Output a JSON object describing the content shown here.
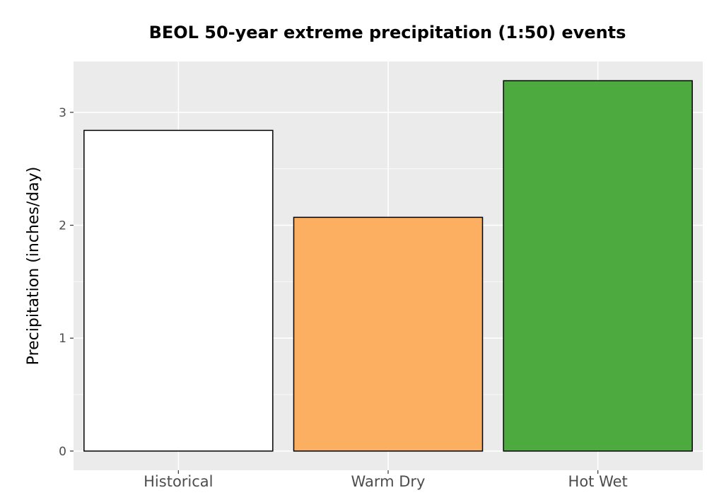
{
  "chart_data": {
    "type": "bar",
    "title": "BEOL 50-year extreme precipitation (1:50) events",
    "xlabel": "",
    "ylabel": "Precipitation (inches/day)",
    "categories": [
      "Historical",
      "Warm Dry",
      "Hot Wet"
    ],
    "values": [
      2.84,
      2.07,
      3.28
    ],
    "ylim": [
      -0.17,
      3.45
    ],
    "y_ticks": [
      0,
      1,
      2,
      3
    ],
    "grid": true,
    "legend": "none",
    "colors": {
      "panel_background": "#ebebeb",
      "grid": "#ffffff",
      "bar_outline": "#000000",
      "bars": [
        "#ffffff",
        "#fcae61",
        "#4daa3f"
      ]
    }
  }
}
